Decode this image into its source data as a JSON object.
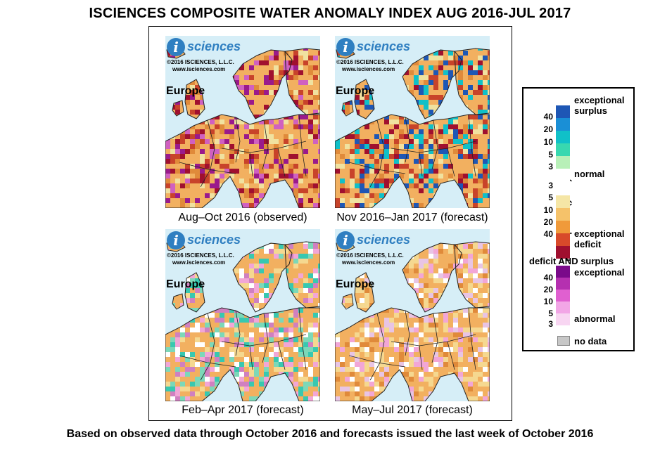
{
  "title": "ISCIENCES COMPOSITE WATER ANOMALY INDEX AUG 2016-JUL 2017",
  "footer": "Based on observed data through October 2016 and forecasts issued the last week of October 2016",
  "logo": {
    "badge": "i",
    "word": "sciences",
    "copyright_line1": "©2016  ISCIENCES, L.L.C.",
    "copyright_line2": "www.isciences.com"
  },
  "panels": [
    {
      "region": "Europe",
      "caption": "Aug–Oct 2016 (observed)",
      "palette": [
        "#f2b060",
        "#e08a3a",
        "#c8432a",
        "#a0102f",
        "#9a1a8c",
        "#d060c0",
        "#f0e2a0"
      ]
    },
    {
      "region": "Europe",
      "caption": "Nov 2016–Jan 2017 (forecast)",
      "palette": [
        "#f2b060",
        "#e08a3a",
        "#c8432a",
        "#a0102f",
        "#1e57b5",
        "#10c0c8",
        "#f0e2a0"
      ]
    },
    {
      "region": "Europe",
      "caption": "Feb–Apr 2017 (forecast)",
      "palette": [
        "#f2b060",
        "#f5d890",
        "#38c8b0",
        "#7cd8b8",
        "#f2a6d6",
        "#d080c0",
        "#ffffff"
      ]
    },
    {
      "region": "Europe",
      "caption": "May–Jul 2017 (forecast)",
      "palette": [
        "#f2b060",
        "#f5d890",
        "#f5d890",
        "#f2a6d6",
        "#e8c4e4",
        "#ffffff",
        "#e08a3a"
      ]
    }
  ],
  "legend": {
    "axis_title": "return period (years)",
    "exceptional_surplus": "exceptional surplus",
    "normal": "normal",
    "exceptional_deficit": "exceptional deficit",
    "combined_title": "deficit AND surplus",
    "combined_exceptional": "exceptional",
    "combined_abnormal": "abnormal",
    "no_data": "no data",
    "surplus_ticks": [
      "40",
      "20",
      "10",
      "5",
      "3"
    ],
    "deficit_ticks": [
      "3",
      "5",
      "10",
      "20",
      "40"
    ],
    "combined_ticks": [
      "40",
      "20",
      "10",
      "5",
      "3"
    ],
    "surplus_colors": [
      "#1e57b5",
      "#1a8fd6",
      "#10c0c8",
      "#38d8b0",
      "#b8f0b8"
    ],
    "deficit_colors": [
      "#f5e6a6",
      "#f5c26a",
      "#f09a3a",
      "#d84a2a",
      "#a0102f"
    ],
    "combined_colors": [
      "#7a0a8a",
      "#b530b0",
      "#e060d0",
      "#f2a6e6",
      "#f8d6f2"
    ],
    "normal_color": "#ffffff",
    "no_data_color": "#c7c7c7"
  }
}
